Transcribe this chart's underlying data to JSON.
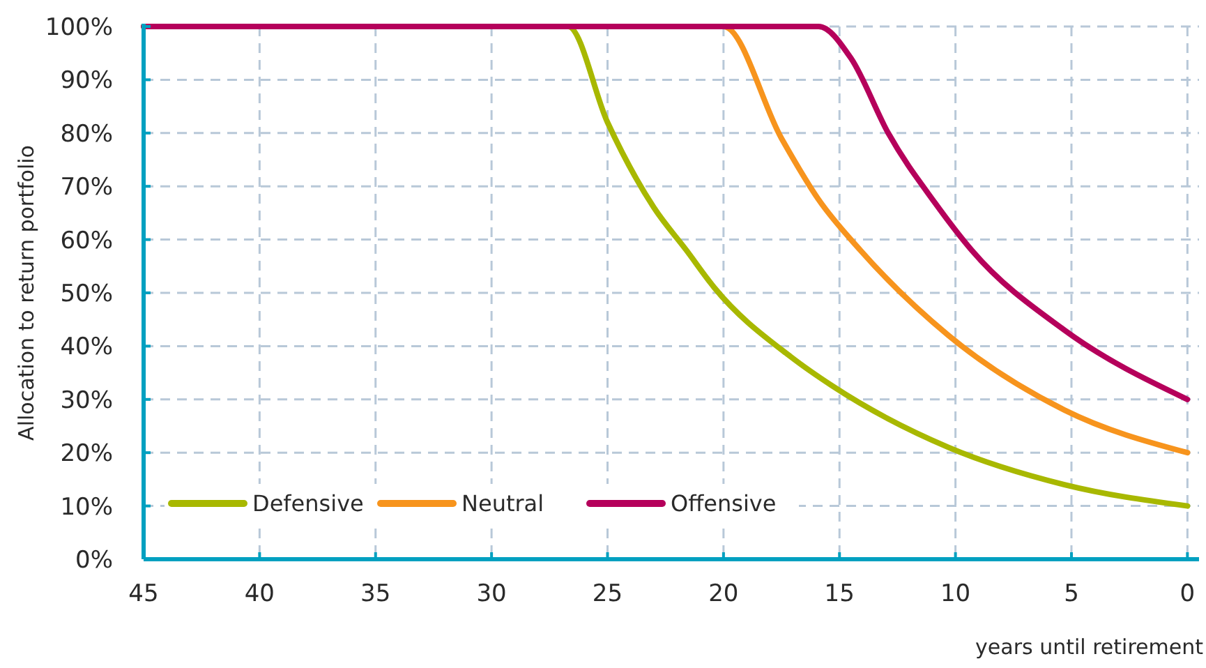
{
  "chart_data": {
    "type": "line",
    "xlabel": "years until retirement",
    "ylabel": "Allocation to return portfolio",
    "xlim": [
      45,
      -0.5
    ],
    "xticks": [
      45,
      40,
      35,
      30,
      25,
      20,
      15,
      10,
      5,
      0
    ],
    "ylim": [
      0,
      100
    ],
    "yticks": [
      {
        "value": 0,
        "label": "0%"
      },
      {
        "value": 10,
        "label": "10%"
      },
      {
        "value": 20,
        "label": "20%"
      },
      {
        "value": 30,
        "label": "30%"
      },
      {
        "value": 40,
        "label": "40%"
      },
      {
        "value": 50,
        "label": "50%"
      },
      {
        "value": 60,
        "label": "60%"
      },
      {
        "value": 70,
        "label": "70%"
      },
      {
        "value": 80,
        "label": "80%"
      },
      {
        "value": 90,
        "label": "90%"
      },
      {
        "value": 100,
        "label": "100%"
      }
    ],
    "grid": true,
    "legend": "bottom left",
    "line_style": "solid",
    "marker": "none",
    "series": [
      {
        "name": "Defensive",
        "color": "#a8b800",
        "x": [
          45,
          26.7,
          25,
          23,
          21.6,
          20.4,
          17.1,
          15.3,
          10.3,
          5.3,
          0
        ],
        "values": [
          100,
          100,
          82,
          66,
          58,
          51,
          38,
          32.5,
          21,
          14,
          10
        ]
      },
      {
        "name": "Neutral",
        "color": "#f7941d",
        "x": [
          45,
          20,
          17.5,
          15.9,
          14.1,
          10.3,
          5.3,
          0
        ],
        "values": [
          100,
          100,
          79,
          67.5,
          58,
          42,
          28,
          20
        ]
      },
      {
        "name": "Offensive",
        "color": "#b5005b",
        "x": [
          45,
          15.9,
          14.5,
          12.9,
          10.9,
          9.3,
          5.3,
          0
        ],
        "values": [
          100,
          100,
          94,
          80,
          67,
          58,
          43,
          30
        ]
      }
    ]
  }
}
